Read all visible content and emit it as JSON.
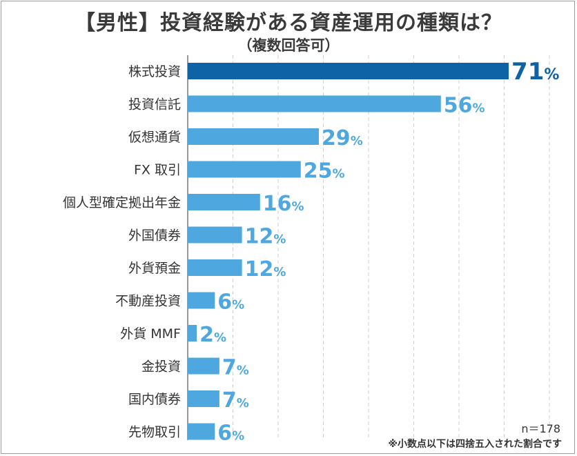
{
  "title": "【男性】投資経験がある資産運用の種類は？",
  "subtitle": "（複数回答可）",
  "sample_size": "n＝178",
  "note": "※小数点以下は四捨五入された割合です",
  "colors": {
    "highlight": "#0e63a6",
    "bar": "#4ea8df",
    "grid": "#cfcfcf",
    "axis": "#555555",
    "label": "#333333"
  },
  "chart_data": {
    "type": "bar",
    "orientation": "horizontal",
    "categories": [
      "株式投資",
      "投資信託",
      "仮想通貨",
      "FX 取引",
      "個人型確定拠出年金",
      "外国債券",
      "外貨預金",
      "不動産投資",
      "外貨 MMF",
      "金投資",
      "国内債券",
      "先物取引"
    ],
    "values": [
      71,
      56,
      29,
      25,
      16,
      12,
      12,
      6,
      2,
      7,
      7,
      6
    ],
    "value_suffix": "%",
    "xlim": [
      0,
      80
    ],
    "grid": true,
    "highlight_index": 0
  }
}
